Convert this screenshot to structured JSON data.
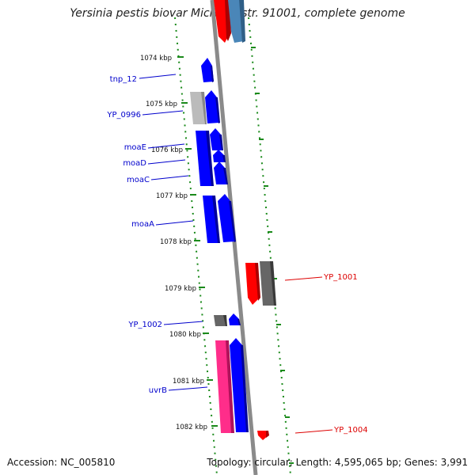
{
  "title": "Yersinia pestis biovar Microtus str. 91001, complete genome",
  "footer": {
    "accession": "Accession: NC_005810",
    "summary": "Topology: circular; Length: 4,595,065 bp; Genes: 3,991"
  },
  "kbp_ticks": [
    "1074 kbp",
    "1075 kbp",
    "1076 kbp",
    "1077 kbp",
    "1078 kbp",
    "1079 kbp",
    "1080 kbp",
    "1081 kbp",
    "1082 kbp"
  ],
  "gene_labels_left": [
    "tnp_12",
    "YP_0996",
    "moaE",
    "moaD",
    "moaC",
    "moaA",
    "YP_1002",
    "uvrB"
  ],
  "gene_labels_right": [
    "YP_1001",
    "YP_1004"
  ],
  "colors": {
    "forward_gene": "#0000ff",
    "reverse_gene": "#ff0000",
    "pseudo_gene": "#666666",
    "light_gene": "#bbbbbb",
    "pink_gene": "#ff2d8a",
    "steel_gene": "#4a86b8",
    "tick_green": "#1a8a1a",
    "label_left": "#0000cc",
    "label_right": "#dd0000",
    "backbone": "#8a8a8a"
  }
}
